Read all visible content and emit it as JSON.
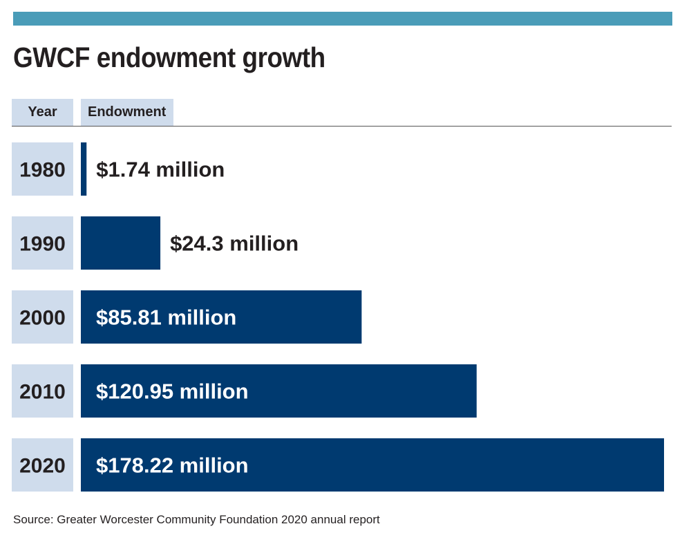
{
  "title": "GWCF endowment growth",
  "header": {
    "year_label": "Year",
    "endowment_label": "Endowment"
  },
  "source": "Source: Greater Worcester Community Foundation 2020 annual report",
  "colors": {
    "top_bar": "#4a9cb8",
    "bar": "#003a70",
    "year_cell": "#cfdcec",
    "label_dark": "#231f20",
    "label_light": "#ffffff"
  },
  "chart_data": {
    "type": "bar",
    "orientation": "horizontal",
    "unit": "million",
    "categories": [
      "1980",
      "1990",
      "2000",
      "2010",
      "2020"
    ],
    "values": [
      1.74,
      24.3,
      85.81,
      120.95,
      178.22
    ],
    "labels": [
      "$1.74 million",
      "$24.3 million",
      "$85.81 million",
      "$120.95 million",
      "$178.22 million"
    ],
    "xlim": [
      0,
      178.22
    ],
    "grid": false
  }
}
